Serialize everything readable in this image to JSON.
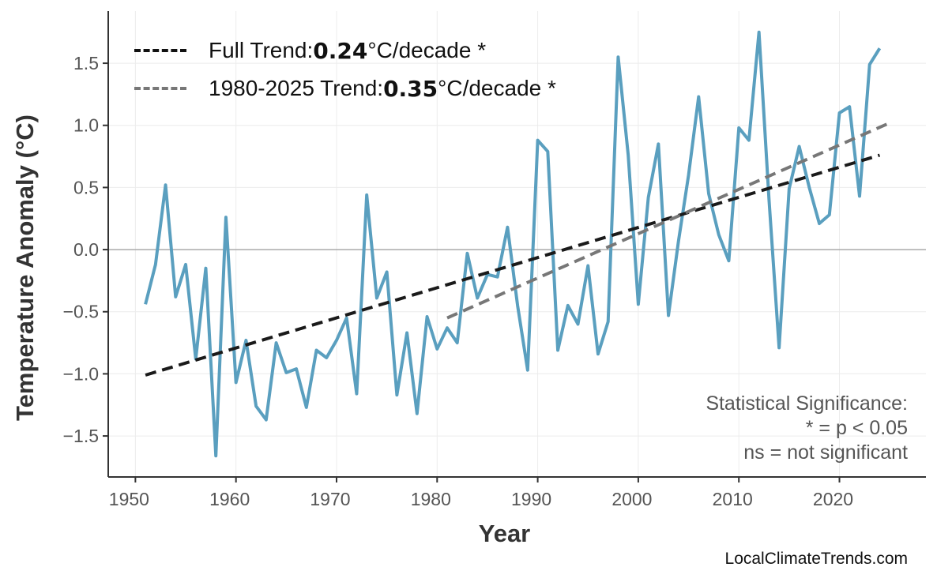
{
  "chart_data": {
    "type": "line",
    "xlabel": "Year",
    "ylabel": "Temperature Anomaly (°C)",
    "xlim": [
      1947.3,
      2028.6
    ],
    "ylim": [
      -1.83,
      1.92
    ],
    "xticks": [
      1950,
      1960,
      1970,
      1980,
      1990,
      2000,
      2010,
      2020
    ],
    "yticks": [
      -1.5,
      -1.0,
      -0.5,
      0.0,
      0.5,
      1.0,
      1.5
    ],
    "ytick_labels": [
      "−1.5",
      "−1.0",
      "−0.5",
      "0.0",
      "0.5",
      "1.0",
      "1.5"
    ],
    "grid": true,
    "zero_line": true,
    "legend_position": "top-left",
    "series": [
      {
        "color": "#5a9fbf",
        "x": [
          1951,
          1952,
          1953,
          1954,
          1955,
          1956,
          1957,
          1958,
          1959,
          1960,
          1961,
          1962,
          1963,
          1964,
          1965,
          1966,
          1967,
          1968,
          1969,
          1970,
          1971,
          1972,
          1973,
          1974,
          1975,
          1976,
          1977,
          1978,
          1979,
          1980,
          1981,
          1982,
          1983,
          1984,
          1985,
          1986,
          1987,
          1988,
          1989,
          1990,
          1991,
          1992,
          1993,
          1994,
          1995,
          1996,
          1997,
          1998,
          1999,
          2000,
          2001,
          2002,
          2003,
          2004,
          2005,
          2006,
          2007,
          2008,
          2009,
          2010,
          2011,
          2012,
          2013,
          2014,
          2015,
          2016,
          2017,
          2018,
          2019,
          2020,
          2021,
          2022,
          2023,
          2024
        ],
        "y": [
          -0.44,
          -0.12,
          0.52,
          -0.38,
          -0.12,
          -0.88,
          -0.15,
          -1.66,
          0.26,
          -1.07,
          -0.73,
          -1.26,
          -1.37,
          -0.75,
          -0.99,
          -0.96,
          -1.27,
          -0.81,
          -0.87,
          -0.73,
          -0.55,
          -1.16,
          0.44,
          -0.39,
          -0.18,
          -1.17,
          -0.67,
          -1.32,
          -0.54,
          -0.8,
          -0.63,
          -0.75,
          -0.03,
          -0.39,
          -0.2,
          -0.22,
          0.18,
          -0.45,
          -0.97,
          0.88,
          0.79,
          -0.81,
          -0.45,
          -0.6,
          -0.13,
          -0.84,
          -0.58,
          1.55,
          0.76,
          -0.44,
          0.42,
          0.85,
          -0.53,
          0.07,
          0.6,
          1.23,
          0.45,
          0.12,
          -0.09,
          0.98,
          0.88,
          1.75,
          0.4,
          -0.79,
          0.49,
          0.83,
          0.5,
          0.21,
          0.28,
          1.1,
          1.15,
          0.43,
          1.49,
          1.62
        ]
      }
    ],
    "trends": [
      {
        "label": "Full Trend: ",
        "value": "0.24",
        "unit": "°C/decade *",
        "color": "#1a1a1a",
        "x": [
          1951,
          2024
        ],
        "y": [
          -1.01,
          0.76
        ]
      },
      {
        "label": "1980-2025 Trend: ",
        "value": "0.35",
        "unit": "°C/decade *",
        "color": "#777777",
        "x": [
          1981,
          2025
        ],
        "y": [
          -0.55,
          1.02
        ]
      }
    ],
    "annotation": [
      "Statistical Significance:",
      "* = p < 0.05",
      "ns = not significant"
    ]
  },
  "footer": "LocalClimateTrends.com"
}
